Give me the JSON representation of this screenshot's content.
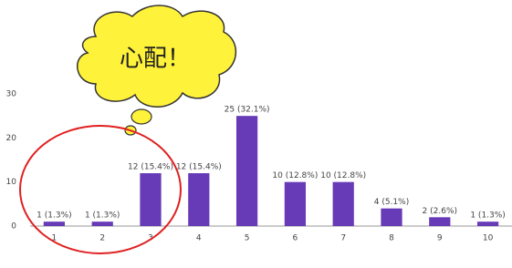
{
  "chart_data": {
    "type": "bar",
    "categories": [
      "1",
      "2",
      "3",
      "4",
      "5",
      "6",
      "7",
      "8",
      "9",
      "10"
    ],
    "values": [
      1,
      1,
      12,
      12,
      25,
      10,
      10,
      4,
      2,
      1
    ],
    "value_labels": [
      "1 (1.3%)",
      "1 (1.3%)",
      "12 (15.4%)",
      "12 (15.4%)",
      "25 (32.1%)",
      "10 (12.8%)",
      "10 (12.8%)",
      "4 (5.1%)",
      "2 (2.6%)",
      "1 (1.3%)"
    ],
    "color": "#673ab7",
    "ylim": [
      0,
      30
    ],
    "yticks": [
      0,
      10,
      20,
      30
    ],
    "grid": false,
    "annotation": "心配！"
  }
}
